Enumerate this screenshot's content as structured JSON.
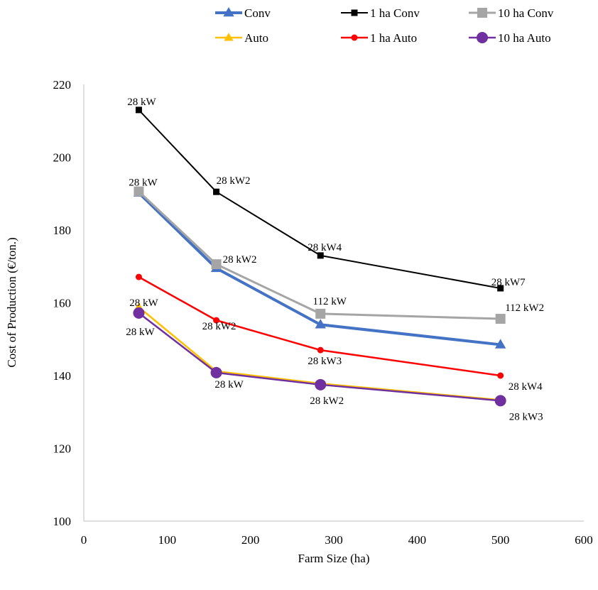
{
  "chart_data": {
    "type": "line",
    "xlabel": "Farm Size (ha)",
    "ylabel": "Cost of Production (€/ton.)",
    "xlim": [
      0,
      600
    ],
    "ylim": [
      100,
      220
    ],
    "xticks": [
      0,
      100,
      200,
      300,
      400,
      500,
      600
    ],
    "yticks": [
      100,
      120,
      140,
      160,
      180,
      200,
      220
    ],
    "grid": false,
    "legend_position": "top",
    "series": [
      {
        "name": "Conv",
        "color": "#4472C4",
        "marker": "triangle",
        "x": [
          66,
          159,
          284,
          500
        ],
        "y": [
          190.2,
          169.5,
          154.0,
          148.5
        ]
      },
      {
        "name": "1 ha Conv",
        "color": "#000000",
        "marker": "square",
        "x": [
          66,
          159,
          284,
          500
        ],
        "y": [
          213.0,
          190.5,
          173.0,
          164.0
        ],
        "labels": [
          "28 kW",
          "28 kW2",
          "28 kW4",
          "28 kW7"
        ]
      },
      {
        "name": "10 ha Conv",
        "color": "#A5A5A5",
        "marker": "square",
        "x": [
          66,
          159,
          284,
          500
        ],
        "y": [
          190.6,
          170.6,
          157.0,
          155.6
        ],
        "labels": [
          "28 kW",
          "28 kW2",
          "112 kW",
          "112 kW2"
        ]
      },
      {
        "name": "Auto",
        "color": "#FFC000",
        "marker": "triangle",
        "x": [
          66,
          159,
          284,
          500
        ],
        "y": [
          158.8,
          141.2,
          137.8,
          133.3
        ]
      },
      {
        "name": "1 ha Auto",
        "color": "#FF0000",
        "marker": "circle",
        "x": [
          66,
          159,
          284,
          500
        ],
        "y": [
          167.1,
          155.2,
          147.0,
          140.0
        ],
        "labels": [
          "28 kW",
          "28 kW2",
          "28 kW3",
          "28 kW4"
        ]
      },
      {
        "name": "10 ha Auto",
        "color": "#7030A0",
        "marker": "circle",
        "x": [
          66,
          159,
          284,
          500
        ],
        "y": [
          157.2,
          140.8,
          137.5,
          133.1
        ],
        "labels": [
          "28 kW",
          "28 kW",
          "28 kW2",
          "28 kW3"
        ]
      }
    ]
  }
}
